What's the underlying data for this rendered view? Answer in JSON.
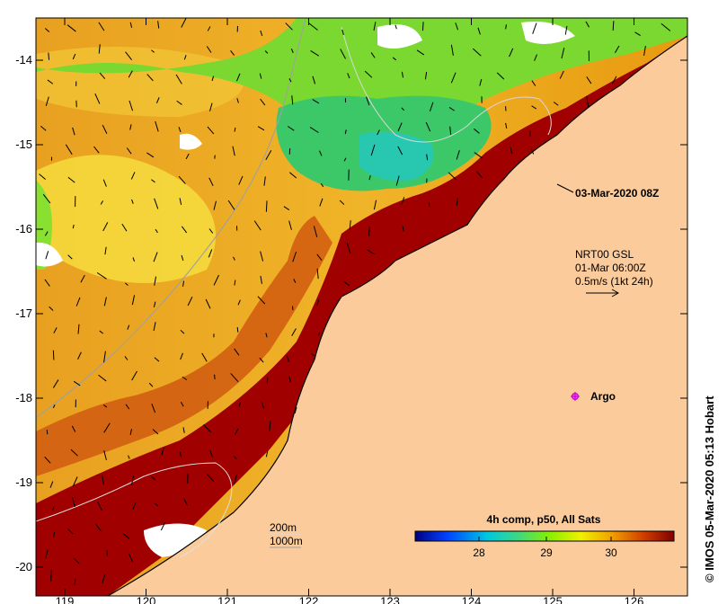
{
  "map": {
    "date_label": "03-Mar-2020 08Z",
    "current_info": [
      "NRT00 GSL",
      "01-Mar 06:00Z",
      "0.5m/s (1kt 24h)"
    ],
    "argo_label": "Argo",
    "scale_labels": [
      "200m",
      "1000m"
    ],
    "credit": "© IMOS 05-Mar-2020 05:13 Hobart",
    "lon_ticks": [
      "119",
      "120",
      "121",
      "122",
      "123",
      "124",
      "125",
      "126"
    ],
    "lat_ticks": [
      "-14",
      "-15",
      "-16",
      "-17",
      "-18",
      "-19",
      "-20"
    ]
  },
  "colorbar": {
    "title": "4h comp, p50, All Sats",
    "ticks": [
      "28",
      "29",
      "30"
    ],
    "colors": [
      "#00007f",
      "#0040ff",
      "#00c8e0",
      "#40d880",
      "#88f000",
      "#f0f000",
      "#f0a000",
      "#d04000",
      "#7f0000"
    ]
  },
  "colors": {
    "land": "#fbcb9b",
    "warm": "#a00000",
    "mid": "#e89a10",
    "cool": "#40c860",
    "no_data": "#ffffff"
  }
}
